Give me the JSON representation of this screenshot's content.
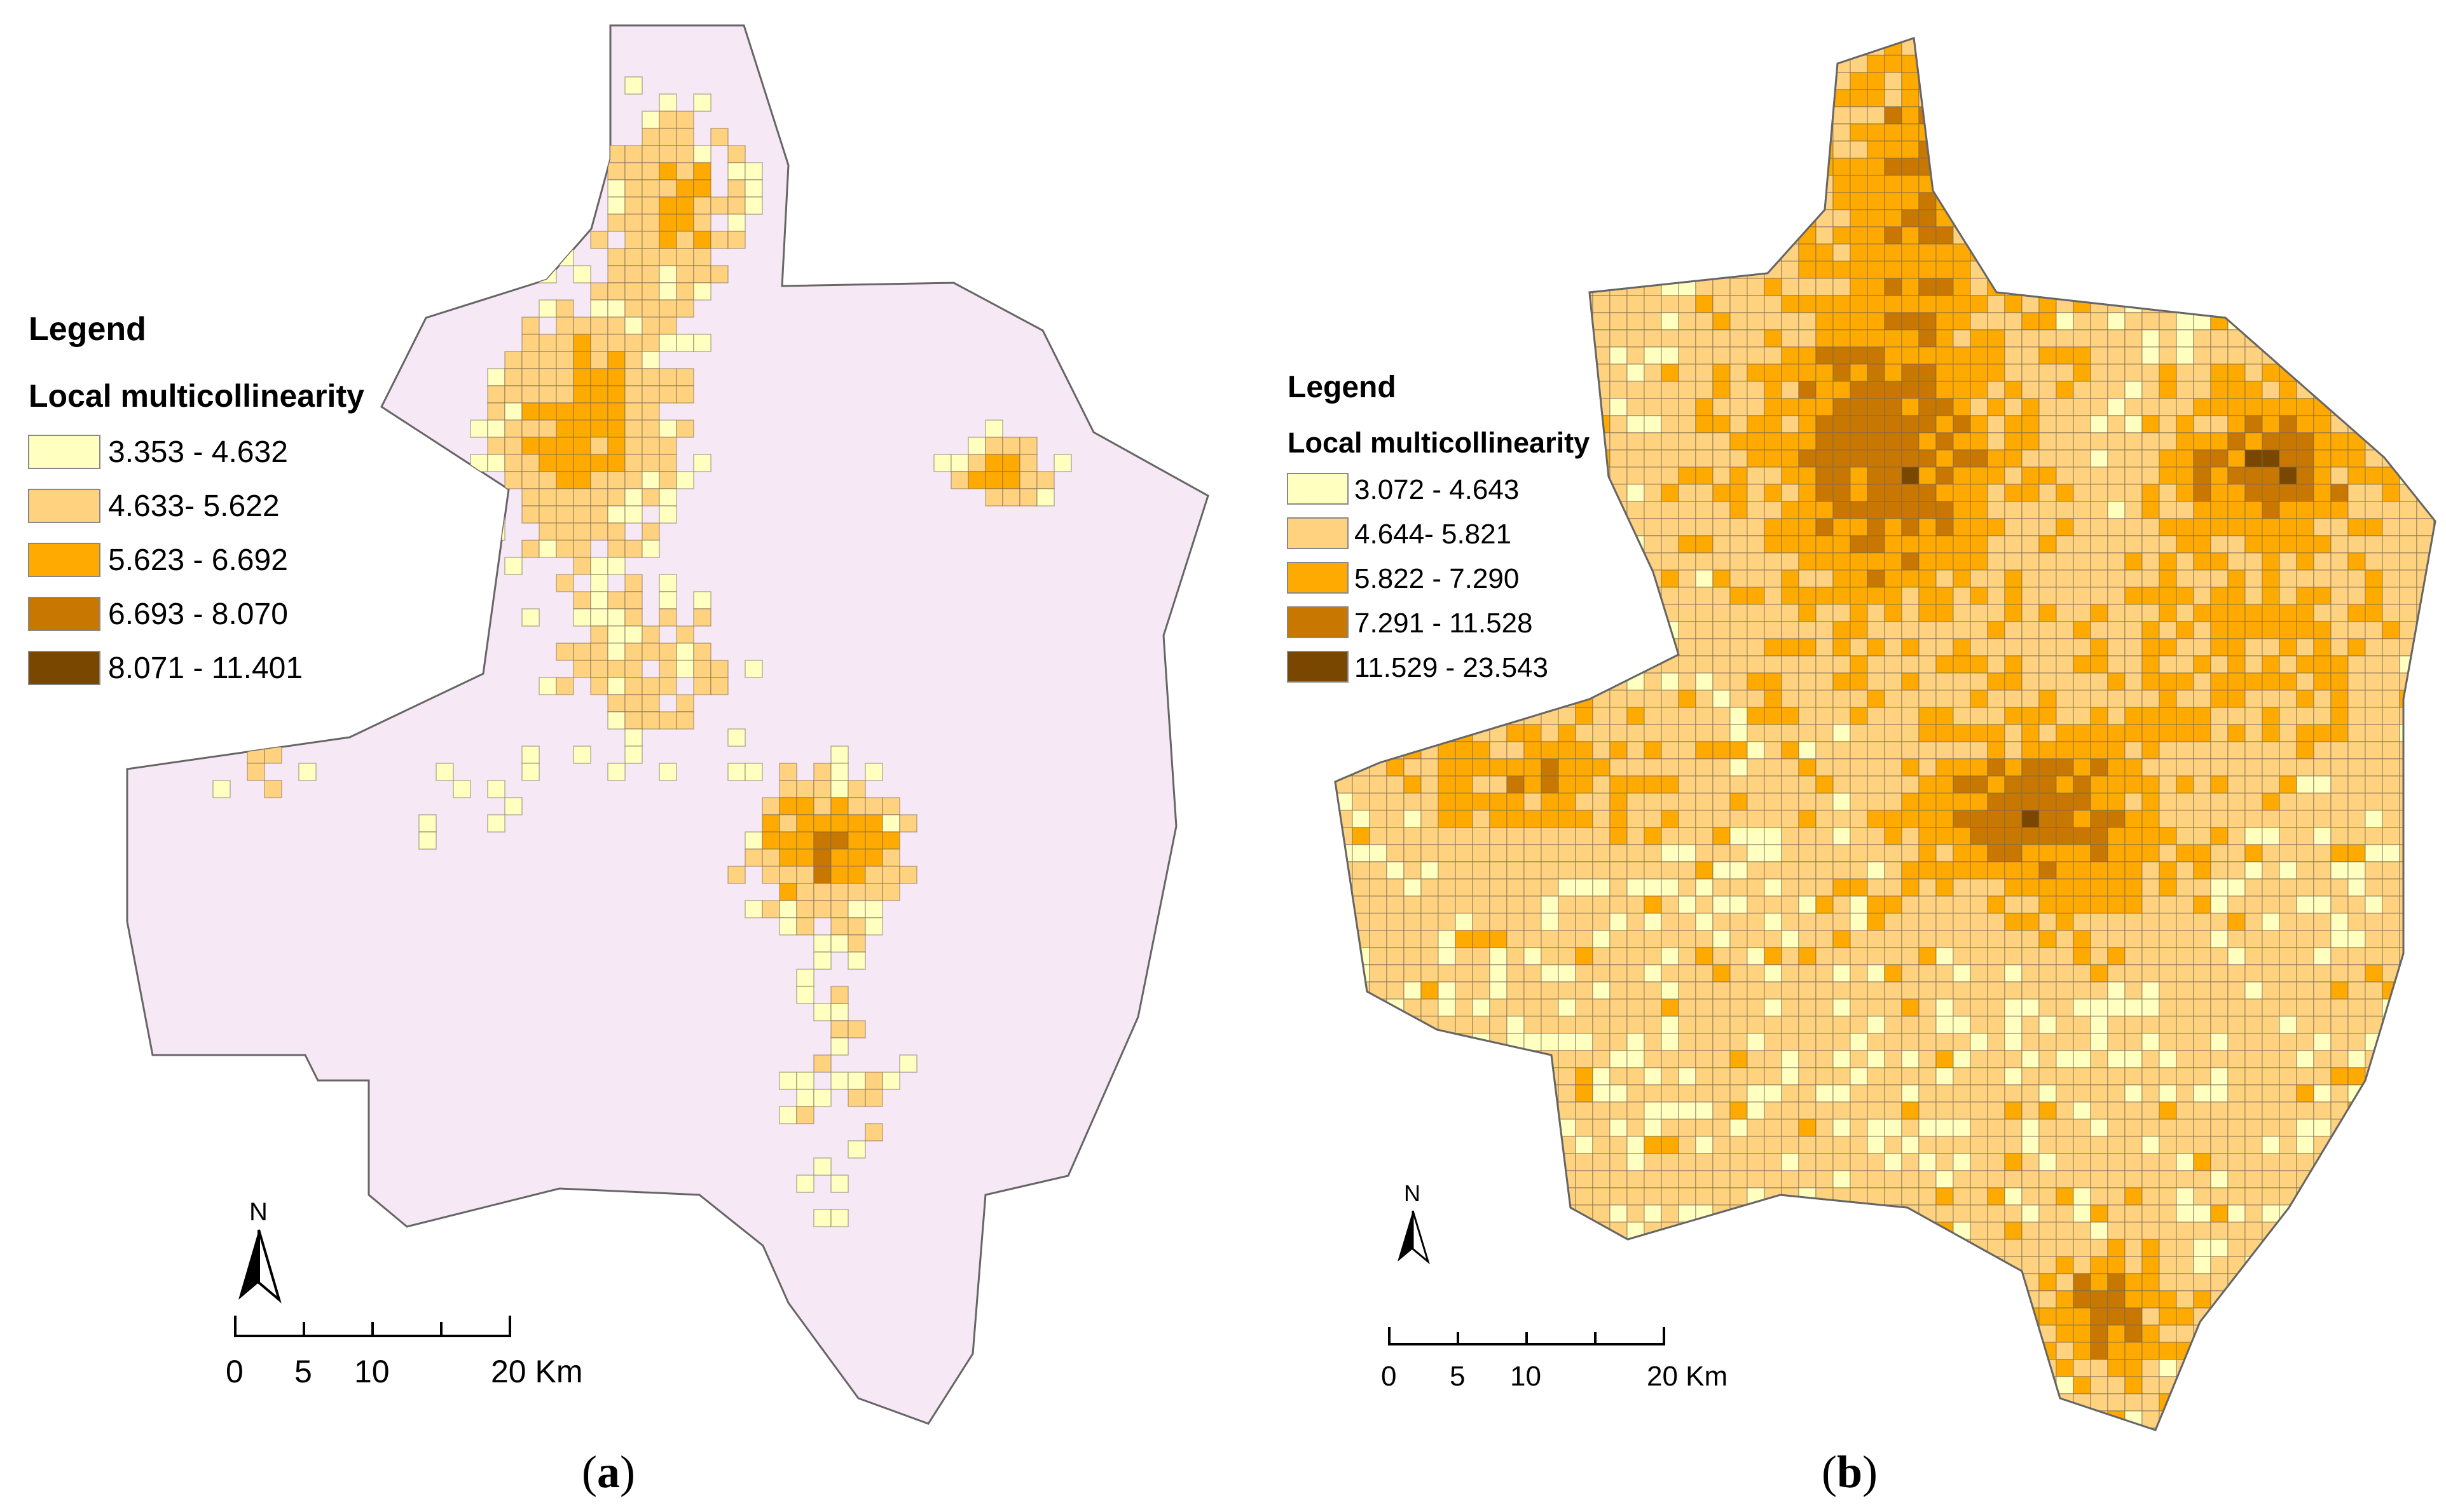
{
  "colors": {
    "background_fill": "#f7e8f6",
    "class_1": "#ffffc0",
    "class_2": "#ffd27f",
    "class_3": "#ffaa00",
    "class_4": "#c87800",
    "class_5": "#7a4700",
    "outline": "#666666"
  },
  "panels": [
    {
      "caption_open": "(",
      "caption_letter": "a",
      "caption_close": ")",
      "legend": {
        "title": "Legend",
        "subtitle": "Local multicollinearity",
        "classes": [
          {
            "label": "3.353 - 4.632",
            "color": "#ffffc0"
          },
          {
            "label": "4.633- 5.622",
            "color": "#ffd27f"
          },
          {
            "label": "5.623 - 6.692",
            "color": "#ffaa00"
          },
          {
            "label": "6.693 - 8.070",
            "color": "#c87800"
          },
          {
            "label": "8.071 - 11.401",
            "color": "#7a4700"
          }
        ]
      },
      "north_label": "N",
      "scale_labels": [
        "0",
        "5",
        "10",
        "20 Km"
      ]
    },
    {
      "caption_open": "(",
      "caption_letter": "b",
      "caption_close": ")",
      "legend": {
        "title": "Legend",
        "subtitle": "Local multicollinearity",
        "classes": [
          {
            "label": "3.072 - 4.643",
            "color": "#ffffc0"
          },
          {
            "label": "4.644- 5.821",
            "color": "#ffd27f"
          },
          {
            "label": "5.822 - 7.290",
            "color": "#ffaa00"
          },
          {
            "label": "7.291 - 11.528",
            "color": "#c87800"
          },
          {
            "label": "11.529 - 23.543",
            "color": "#7a4700"
          }
        ]
      },
      "north_label": "N",
      "scale_labels": [
        "0",
        "5",
        "10",
        "20 Km"
      ]
    }
  ]
}
